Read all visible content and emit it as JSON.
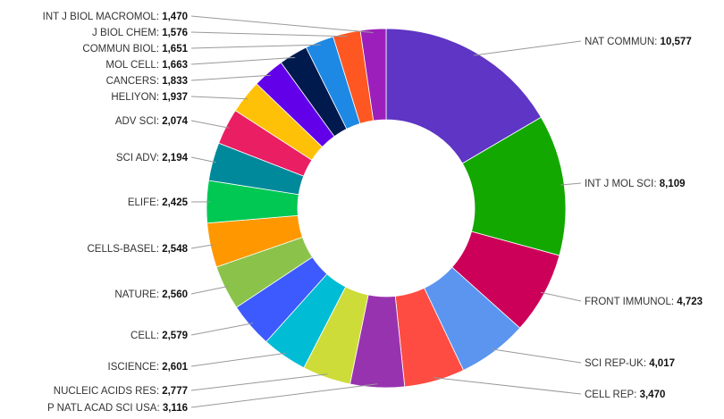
{
  "chart_data": {
    "type": "pie",
    "variant": "donut",
    "title": "",
    "categories": [
      "NAT COMMUN",
      "INT J MOL SCI",
      "FRONT IMMUNOL",
      "SCI REP-UK",
      "CELL REP",
      "P NATL ACAD SCI USA",
      "NUCLEIC ACIDS RES",
      "ISCIENCE",
      "CELL",
      "NATURE",
      "CELLS-BASEL",
      "ELIFE",
      "SCI ADV",
      "ADV SCI",
      "HELIYON",
      "CANCERS",
      "MOL CELL",
      "COMMUN BIOL",
      "J BIOL CHEM",
      "INT J BIOL MACROMOL"
    ],
    "values": [
      10577,
      8109,
      4723,
      4017,
      3470,
      3116,
      2777,
      2601,
      2579,
      2560,
      2548,
      2425,
      2194,
      2074,
      1937,
      1833,
      1663,
      1651,
      1576,
      1470
    ],
    "value_labels": [
      "10,577",
      "8,109",
      "4,723",
      "4,017",
      "3,470",
      "3,116",
      "2,777",
      "2,601",
      "2,579",
      "2,560",
      "2,548",
      "2,425",
      "2,194",
      "2,074",
      "1,937",
      "1,833",
      "1,663",
      "1,651",
      "1,576",
      "1,470"
    ],
    "colors": [
      "#5e35c4",
      "#13a800",
      "#cc0058",
      "#5b95f0",
      "#ff4c42",
      "#9833b0",
      "#cddc39",
      "#00bcd4",
      "#3d5afe",
      "#8bc34a",
      "#ff9800",
      "#00c853",
      "#00899b",
      "#e91e63",
      "#ffc107",
      "#6200ea",
      "#001a4e",
      "#1e88e5",
      "#ff5722",
      "#9c1fbb"
    ],
    "legend": "none"
  }
}
